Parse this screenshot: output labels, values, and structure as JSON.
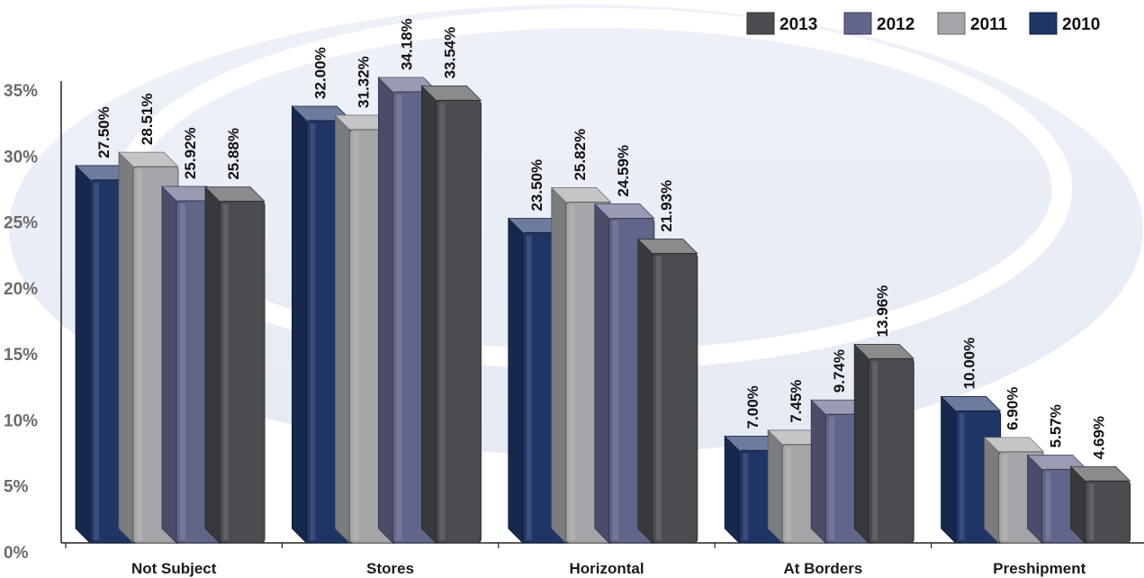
{
  "chart_data": {
    "type": "bar",
    "categories": [
      "Not Subject",
      "Stores",
      "Horizontal",
      "At Borders",
      "Preshipment"
    ],
    "series": [
      {
        "name": "2010",
        "values": [
          27.5,
          32.0,
          23.5,
          7.0,
          10.0
        ],
        "labels": [
          "27.50%",
          "32.00%",
          "23.50%",
          "7.00%",
          "10.00%"
        ]
      },
      {
        "name": "2011",
        "values": [
          28.51,
          31.32,
          25.82,
          7.45,
          6.9
        ],
        "labels": [
          "28.51%",
          "31.32%",
          "25.82%",
          "7.45%",
          "6.90%"
        ]
      },
      {
        "name": "2012",
        "values": [
          25.92,
          34.18,
          24.59,
          9.74,
          5.57
        ],
        "labels": [
          "25.92%",
          "34.18%",
          "24.59%",
          "9.74%",
          "5.57%"
        ]
      },
      {
        "name": "2013",
        "values": [
          25.88,
          33.54,
          21.93,
          13.96,
          4.69
        ],
        "labels": [
          "25.88%",
          "33.54%",
          "21.93%",
          "13.96%",
          "4.69%"
        ]
      }
    ],
    "y_ticks": [
      "0%",
      "5%",
      "10%",
      "15%",
      "20%",
      "25%",
      "30%",
      "35%"
    ],
    "ylim": [
      0,
      35
    ],
    "legend": {
      "placement": "top-right",
      "order": [
        "2013",
        "2012",
        "2011",
        "2010"
      ]
    },
    "colors": {
      "2010": "#1f3566",
      "2011": "#a3a5a8",
      "2012": "#62658a",
      "2013": "#4a4c50"
    },
    "title": "",
    "xlabel": "",
    "ylabel": "",
    "grid": false
  }
}
